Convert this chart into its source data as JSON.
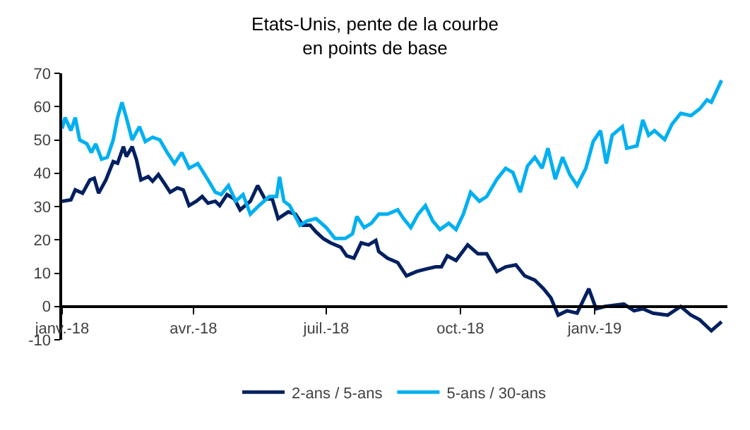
{
  "chart_data": {
    "type": "line",
    "title": "Etats-Unis, pente de la courbe\nen points de base",
    "xlim": [
      "2018-01-01",
      "2019-04-02"
    ],
    "xticks": [
      {
        "value": "2018-01-01",
        "label": "janv.-18"
      },
      {
        "value": "2018-04-01",
        "label": "avr.-18"
      },
      {
        "value": "2018-07-01",
        "label": "juil.-18"
      },
      {
        "value": "2018-10-01",
        "label": "oct.-18"
      },
      {
        "value": "2019-01-01",
        "label": "janv.-19"
      }
    ],
    "ylim": [
      -10,
      70
    ],
    "yticks": [
      -10,
      0,
      10,
      20,
      30,
      40,
      50,
      60,
      70
    ],
    "legend": "bottom",
    "marker": "none",
    "line_style": "solid",
    "series": [
      {
        "name": "2-ans / 5-ans",
        "color": "#002060",
        "x": [
          "2018-01-01",
          "2018-01-07",
          "2018-01-10",
          "2018-01-15",
          "2018-01-20",
          "2018-01-23",
          "2018-01-26",
          "2018-01-31",
          "2018-02-05",
          "2018-02-08",
          "2018-02-12",
          "2018-02-14",
          "2018-02-18",
          "2018-02-21",
          "2018-02-24",
          "2018-03-01",
          "2018-03-04",
          "2018-03-08",
          "2018-03-12",
          "2018-03-16",
          "2018-03-21",
          "2018-03-25",
          "2018-03-29",
          "2018-04-03",
          "2018-04-07",
          "2018-04-11",
          "2018-04-16",
          "2018-04-19",
          "2018-04-24",
          "2018-04-29",
          "2018-05-03",
          "2018-05-10",
          "2018-05-15",
          "2018-05-20",
          "2018-05-25",
          "2018-05-29",
          "2018-06-05",
          "2018-06-10",
          "2018-06-15",
          "2018-06-20",
          "2018-06-24",
          "2018-06-29",
          "2018-07-04",
          "2018-07-11",
          "2018-07-15",
          "2018-07-20",
          "2018-07-25",
          "2018-07-30",
          "2018-08-04",
          "2018-08-06",
          "2018-08-12",
          "2018-08-19",
          "2018-08-25",
          "2018-09-01",
          "2018-09-07",
          "2018-09-14",
          "2018-09-18",
          "2018-09-22",
          "2018-09-28",
          "2018-10-06",
          "2018-10-13",
          "2018-10-19",
          "2018-10-26",
          "2018-11-01",
          "2018-11-08",
          "2018-11-14",
          "2018-11-21",
          "2018-11-27",
          "2018-12-02",
          "2018-12-07",
          "2018-12-13",
          "2018-12-20",
          "2018-12-28",
          "2019-01-02",
          "2019-01-08",
          "2019-01-21",
          "2019-01-28",
          "2019-02-03",
          "2019-02-10",
          "2019-02-20",
          "2019-03-01",
          "2019-03-08",
          "2019-03-14",
          "2019-03-22",
          "2019-03-29"
        ],
        "values": [
          31.6,
          32,
          35,
          34,
          38,
          38.5,
          34,
          38,
          43.5,
          43,
          48,
          45,
          48,
          44,
          38,
          39,
          37.6,
          39.6,
          37,
          34.3,
          35.6,
          35,
          30.3,
          31.6,
          33,
          31,
          31.6,
          30.3,
          33.6,
          32.3,
          29,
          31.6,
          36.3,
          32.3,
          32.3,
          26.4,
          28.4,
          27.7,
          24.4,
          24.4,
          22.4,
          20.4,
          19.1,
          17.8,
          15.2,
          14.5,
          19.1,
          18.5,
          19.8,
          16.5,
          14.5,
          13.2,
          9.2,
          10.5,
          11.2,
          11.9,
          11.9,
          15.2,
          13.8,
          18.5,
          15.8,
          15.8,
          10.5,
          11.9,
          12.5,
          9.2,
          7.9,
          5.3,
          2.6,
          -2.6,
          -1.3,
          -2,
          5.3,
          -0.7,
          0,
          0.7,
          -1.3,
          -0.7,
          -2,
          -2.6,
          0,
          -2.6,
          -4,
          -7.3,
          -4.6
        ]
      },
      {
        "name": "5-ans / 30-ans",
        "color": "#00b0f0",
        "x": [
          "2018-01-01",
          "2018-01-03",
          "2018-01-07",
          "2018-01-10",
          "2018-01-13",
          "2018-01-18",
          "2018-01-21",
          "2018-01-24",
          "2018-01-28",
          "2018-02-01",
          "2018-02-05",
          "2018-02-08",
          "2018-02-11",
          "2018-02-14",
          "2018-02-18",
          "2018-02-23",
          "2018-02-27",
          "2018-03-04",
          "2018-03-09",
          "2018-03-14",
          "2018-03-19",
          "2018-03-24",
          "2018-03-29",
          "2018-04-04",
          "2018-04-11",
          "2018-04-16",
          "2018-04-20",
          "2018-04-25",
          "2018-04-30",
          "2018-05-05",
          "2018-05-10",
          "2018-05-16",
          "2018-05-23",
          "2018-05-28",
          "2018-05-30",
          "2018-06-02",
          "2018-06-06",
          "2018-06-13",
          "2018-06-18",
          "2018-06-24",
          "2018-07-01",
          "2018-07-07",
          "2018-07-14",
          "2018-07-19",
          "2018-07-22",
          "2018-07-27",
          "2018-08-01",
          "2018-08-06",
          "2018-08-12",
          "2018-08-19",
          "2018-08-23",
          "2018-08-28",
          "2018-09-02",
          "2018-09-07",
          "2018-09-12",
          "2018-09-17",
          "2018-09-23",
          "2018-09-28",
          "2018-10-03",
          "2018-10-08",
          "2018-10-14",
          "2018-10-19",
          "2018-10-26",
          "2018-11-01",
          "2018-11-06",
          "2018-11-11",
          "2018-11-16",
          "2018-11-21",
          "2018-11-26",
          "2018-11-30",
          "2018-12-05",
          "2018-12-10",
          "2018-12-15",
          "2018-12-20",
          "2018-12-26",
          "2018-12-31",
          "2019-01-05",
          "2019-01-09",
          "2019-01-13",
          "2019-01-20",
          "2019-01-23",
          "2019-01-30",
          "2019-02-03",
          "2019-02-07",
          "2019-02-11",
          "2019-02-18",
          "2019-02-23",
          "2019-03-01",
          "2019-03-08",
          "2019-03-14",
          "2019-03-19",
          "2019-03-22",
          "2019-03-29"
        ],
        "values": [
          53.4,
          56.7,
          52.8,
          56.7,
          50,
          48.8,
          46.2,
          48.8,
          44.2,
          44.8,
          50,
          56.7,
          61.3,
          56.7,
          50,
          54,
          49.5,
          50.8,
          50,
          46.2,
          42.9,
          46.2,
          41.5,
          42.9,
          38,
          34.3,
          33.6,
          36.3,
          31.6,
          33.6,
          27.7,
          30.3,
          33,
          33,
          38.9,
          31.6,
          30.3,
          24.4,
          25.7,
          26.4,
          23.7,
          20.4,
          20.4,
          21.8,
          27,
          23.7,
          25,
          27.7,
          27.7,
          29,
          26.4,
          23.7,
          27.7,
          30.3,
          25.7,
          23.1,
          25,
          23.1,
          27.7,
          34.3,
          31.6,
          33,
          38.2,
          41.5,
          40.2,
          34.3,
          42.2,
          44.8,
          41.5,
          47.5,
          38.2,
          44.8,
          39.6,
          36.3,
          41.5,
          49.5,
          52.8,
          42.9,
          51.4,
          54,
          47.5,
          48.2,
          56,
          51.4,
          52.8,
          50.1,
          54.7,
          58,
          57.3,
          59.3,
          62,
          61.3,
          67.9
        ]
      }
    ]
  }
}
